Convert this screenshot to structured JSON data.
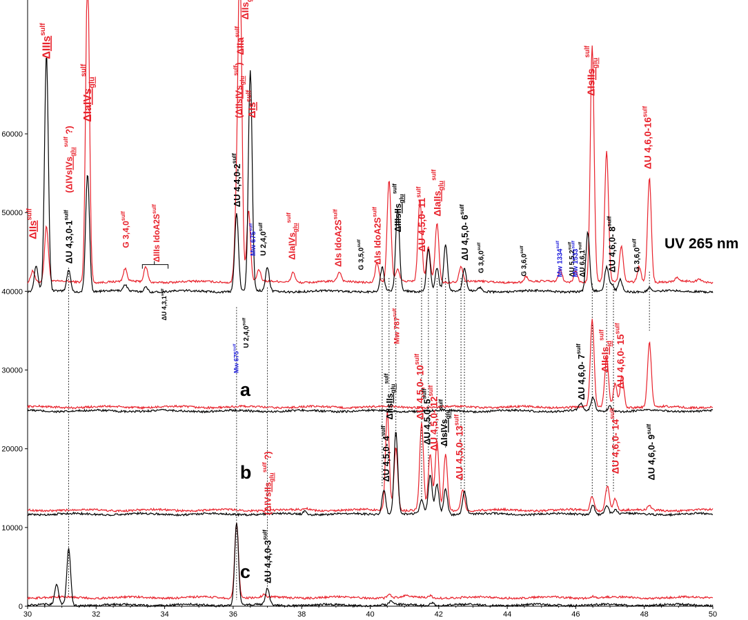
{
  "chart_data": {
    "type": "line",
    "title": "",
    "xlabel": "",
    "ylabel": "",
    "xlim": [
      30,
      50
    ],
    "ylim": [
      0,
      77000
    ],
    "x_ticks": [
      "30",
      "32",
      "34",
      "36",
      "38",
      "40",
      "42",
      "44",
      "46",
      "48",
      "50"
    ],
    "y_ticks": [
      "0",
      "10000",
      "20000",
      "30000",
      "40000",
      "50000",
      "60000"
    ],
    "x_tick_values": [
      30,
      32,
      34,
      36,
      38,
      40,
      42,
      44,
      46,
      48,
      50
    ],
    "y_tick_values": [
      0,
      10000,
      20000,
      30000,
      40000,
      50000,
      60000
    ],
    "grid": false,
    "detector_label": "UV 265 nm",
    "trace_labels": [
      {
        "label": "a",
        "x": 36.2,
        "y": 26700
      },
      {
        "label": "b",
        "x": 36.2,
        "y": 16200
      },
      {
        "label": "c",
        "x": 36.2,
        "y": 3600
      }
    ],
    "colors": {
      "red": "#e8202a",
      "black": "#000000",
      "blue": "#1a1adc"
    },
    "series": [
      {
        "color": "red",
        "baseline": 41200,
        "peaks": [
          [
            30.15,
            1500
          ],
          [
            30.55,
            7000
          ],
          [
            31.75,
            40000
          ],
          [
            32.85,
            1600
          ],
          [
            33.45,
            1900
          ],
          [
            36.1,
            9000
          ],
          [
            36.2,
            40000
          ],
          [
            36.45,
            9000
          ],
          [
            36.75,
            1500
          ],
          [
            37.75,
            1300
          ],
          [
            39.1,
            1200
          ],
          [
            40.2,
            2500
          ],
          [
            40.55,
            13000
          ],
          [
            40.8,
            1500
          ],
          [
            41.45,
            10500
          ],
          [
            41.7,
            4500
          ],
          [
            41.95,
            7500
          ],
          [
            42.65,
            2000
          ],
          [
            44.55,
            700
          ],
          [
            45.55,
            1500
          ],
          [
            46.0,
            1500
          ],
          [
            46.48,
            30000
          ],
          [
            46.9,
            16500
          ],
          [
            47.33,
            4500
          ],
          [
            47.85,
            2000
          ],
          [
            48.15,
            13300
          ],
          [
            48.95,
            500
          ],
          [
            49.6,
            400
          ]
        ]
      },
      {
        "color": "black",
        "baseline": 40000,
        "peaks": [
          [
            30.25,
            3300
          ],
          [
            30.55,
            30000
          ],
          [
            31.2,
            2800
          ],
          [
            31.75,
            15000
          ],
          [
            32.85,
            800
          ],
          [
            33.45,
            600
          ],
          [
            36.1,
            10000
          ],
          [
            36.5,
            28000
          ],
          [
            37.0,
            3000
          ],
          [
            40.35,
            3000
          ],
          [
            40.8,
            10500
          ],
          [
            41.7,
            5500
          ],
          [
            41.95,
            3000
          ],
          [
            42.2,
            6000
          ],
          [
            42.75,
            2800
          ],
          [
            43.2,
            500
          ],
          [
            46.35,
            7500
          ],
          [
            46.9,
            3000
          ],
          [
            47.05,
            800
          ],
          [
            47.3,
            1500
          ],
          [
            48.15,
            500
          ]
        ]
      },
      {
        "color": "red",
        "baseline": 25300,
        "peaks": [
          [
            46.48,
            11000
          ],
          [
            46.9,
            6200
          ],
          [
            47.15,
            3000
          ],
          [
            47.35,
            4000
          ],
          [
            48.15,
            8200
          ]
        ]
      },
      {
        "color": "black",
        "baseline": 24800,
        "peaks": [
          [
            46.15,
            900
          ],
          [
            46.5,
            1700
          ],
          [
            47.0,
            700
          ]
        ]
      },
      {
        "color": "red",
        "baseline": 12200,
        "peaks": [
          [
            38.15,
            200
          ],
          [
            40.5,
            12500
          ],
          [
            40.75,
            8000
          ],
          [
            41.5,
            11000
          ],
          [
            41.75,
            7000
          ],
          [
            41.95,
            8500
          ],
          [
            42.2,
            7000
          ],
          [
            42.7,
            2700
          ],
          [
            46.48,
            1800
          ],
          [
            46.92,
            3200
          ],
          [
            47.15,
            1500
          ],
          [
            48.15,
            500
          ]
        ]
      },
      {
        "color": "black",
        "baseline": 11700,
        "peaks": [
          [
            38.1,
            400
          ],
          [
            40.4,
            3200
          ],
          [
            40.75,
            10500
          ],
          [
            41.5,
            1800
          ],
          [
            41.75,
            5000
          ],
          [
            41.95,
            3800
          ],
          [
            42.2,
            3200
          ],
          [
            42.75,
            3000
          ],
          [
            46.5,
            1200
          ],
          [
            46.9,
            1200
          ],
          [
            47.15,
            500
          ]
        ]
      },
      {
        "color": "red",
        "baseline": 1100,
        "peaks": [
          [
            36.1,
            9600
          ],
          [
            36.9,
            300
          ],
          [
            40.55,
            400
          ],
          [
            41.05,
            200
          ],
          [
            41.75,
            300
          ],
          [
            46.5,
            200
          ]
        ]
      },
      {
        "color": "black",
        "baseline": 150,
        "peaks": [
          [
            30.85,
            2600
          ],
          [
            31.2,
            7200
          ],
          [
            36.1,
            10500
          ],
          [
            37.0,
            2100
          ],
          [
            40.6,
            400
          ],
          [
            41.8,
            400
          ]
        ]
      }
    ],
    "dashed_lines": [
      [
        31.2,
        43000,
        1000
      ],
      [
        36.1,
        38000,
        800
      ],
      [
        37.0,
        40500,
        2400
      ],
      [
        40.35,
        41700,
        15200
      ],
      [
        40.55,
        41700,
        27000
      ],
      [
        40.75,
        41700,
        21500
      ],
      [
        41.5,
        41700,
        13500
      ],
      [
        41.7,
        41700,
        16500
      ],
      [
        41.95,
        41700,
        20800
      ],
      [
        42.2,
        41700,
        20000
      ],
      [
        42.65,
        41700,
        14900
      ],
      [
        42.75,
        41700,
        14900
      ],
      [
        46.48,
        41000,
        13700
      ],
      [
        46.9,
        41000,
        14600
      ],
      [
        47.1,
        41000,
        14600
      ],
      [
        48.15,
        42500,
        35000
      ]
    ],
    "annotations": [
      {
        "text": "ΔIIs",
        "sup": "sulf",
        "underline": "IIs",
        "x": 30.25,
        "y": 46600,
        "color": "red",
        "size": 15
      },
      {
        "text": "ΔIIIs",
        "sup": "sulf",
        "underline": "IIIs",
        "x": 30.65,
        "y": 69500,
        "color": "red",
        "size": 16
      },
      {
        "text": "ΔIaIVs",
        "sub": "glu",
        "sup": "sulf",
        "underline": "IVs",
        "x": 31.85,
        "y": 61500,
        "color": "red",
        "size": 16
      },
      {
        "text": "ΔU 4,3,0-1",
        "sup": "sulf",
        "x": 31.3,
        "y": 43500,
        "color": "black",
        "size": 13
      },
      {
        "text": "(ΔIVsIVs",
        "sub": "glu",
        "sup": "sulf",
        "tail": " ?)",
        "underline": "IVs",
        "x": 31.3,
        "y": 52500,
        "color": "red",
        "size": 13
      },
      {
        "text": "G 3,4,0",
        "sup": "sulf",
        "x": 32.95,
        "y": 45500,
        "color": "red",
        "size": 12
      },
      {
        "text": "ΔIIIs IdoA2S",
        "sup": "sulf",
        "x": 33.85,
        "y": 43700,
        "color": "red",
        "size": 12
      },
      {
        "text": "ΔU 4,3,1",
        "sup": "sulf",
        "x": 34.05,
        "y": 36300,
        "color": "black",
        "size": 9
      },
      {
        "text": "ΔU 4,4,0-2",
        "sup": "sulf",
        "x": 36.2,
        "y": 50700,
        "color": "black",
        "size": 13
      },
      {
        "text": "(ΔIIsIVs",
        "sub": "glu",
        "sup": "sulf",
        "tail": ")",
        "underline": "IVs",
        "x": 36.25,
        "y": 62000,
        "color": "red",
        "size": 13
      },
      {
        "text": "ΔIIa",
        "sup": "sulf",
        "x": 36.3,
        "y": 70000,
        "color": "red",
        "size": 14
      },
      {
        "text": "ΔIIs",
        "sub": "glu",
        "x": 36.45,
        "y": 74500,
        "color": "red",
        "size": 14
      },
      {
        "text": "ΔIs",
        "sup": "sulf",
        "underline": "Is",
        "x": 36.65,
        "y": 62000,
        "color": "red",
        "size": 15
      },
      {
        "text": "Mw 675",
        "sup": "sulf",
        "x": 36.65,
        "y": 44500,
        "color": "blue",
        "size": 10
      },
      {
        "text": "U 2,4,0",
        "sup": "sulf",
        "x": 36.95,
        "y": 44500,
        "color": "black",
        "size": 11
      },
      {
        "text": "U 2,4,0",
        "sup": "sulf",
        "x": 36.45,
        "y": 32800,
        "color": "black",
        "size": 10
      },
      {
        "text": "Mw 675",
        "sup": "sulf",
        "x": 36.15,
        "y": 29600,
        "color": "blue",
        "size": 9
      },
      {
        "text": "ΔIaIVs",
        "sub": "glu",
        "sup": "sulf",
        "underline": "IVs",
        "x": 37.8,
        "y": 44000,
        "color": "red",
        "size": 13
      },
      {
        "text": "ΔIs IdoA2S",
        "sup": "sulf",
        "x": 39.15,
        "y": 43100,
        "color": "red",
        "size": 13
      },
      {
        "text": "G 3,5,0",
        "sup": "sulf",
        "x": 39.8,
        "y": 42700,
        "color": "black",
        "size": 10
      },
      {
        "text": "ΔIs IdoA2S",
        "sup": "sulf",
        "x": 40.3,
        "y": 43400,
        "color": "red",
        "size": 13
      },
      {
        "text": "Mw 787",
        "sup": "sulf",
        "x": 40.85,
        "y": 33300,
        "color": "red",
        "size": 11
      },
      {
        "text": "ΔIIIsIIs",
        "sub": "glu",
        "sup": "sulf",
        "underline": "IIs",
        "x": 40.9,
        "y": 47500,
        "color": "black",
        "size": 13
      },
      {
        "text": "ΔU 4,5,0- 11",
        "sup": "sulf",
        "x": 41.6,
        "y": 45000,
        "color": "red",
        "size": 14
      },
      {
        "text": "ΔIaIIs",
        "sub": "glu",
        "sup": "sulf",
        "underline": "IIs",
        "x": 42.05,
        "y": 49500,
        "color": "red",
        "size": 14
      },
      {
        "text": "ΔU 4,5,0- 6",
        "sup": "sulf",
        "x": 42.85,
        "y": 43900,
        "color": "black",
        "size": 13
      },
      {
        "text": "G 3,6,0",
        "sup": "sulf",
        "x": 43.3,
        "y": 42300,
        "color": "black",
        "size": 10
      },
      {
        "text": "G 3,6,0",
        "sup": "sulf",
        "x": 44.55,
        "y": 41900,
        "color": "black",
        "size": 10
      },
      {
        "text": "Mw 1334",
        "sup": "sulf",
        "x": 45.6,
        "y": 41800,
        "color": "blue",
        "size": 10
      },
      {
        "text": "ΔU 5,5,2",
        "sup": "sulf",
        "x": 45.95,
        "y": 41800,
        "color": "black",
        "size": 10
      },
      {
        "text": "Mw 1533",
        "sup": "sulf",
        "x": 46.05,
        "y": 41800,
        "color": "blue",
        "size": 10
      },
      {
        "text": "ΔU 6,6,1",
        "sup": "sulf",
        "x": 46.25,
        "y": 41800,
        "color": "black",
        "size": 10
      },
      {
        "text": "ΔIsIIs",
        "sub": "glu",
        "sup": "sulf",
        "underline": "IIs",
        "x": 46.55,
        "y": 64800,
        "color": "red",
        "size": 15
      },
      {
        "text": "ΔU 4,6,0- 8",
        "sup": "sulf",
        "x": 47.15,
        "y": 42400,
        "color": "black",
        "size": 13
      },
      {
        "text": "G 3,6,0",
        "sup": "sulf",
        "x": 47.85,
        "y": 42400,
        "color": "black",
        "size": 11
      },
      {
        "text": "ΔU 4,6,0-16",
        "sup": "sulf",
        "x": 48.2,
        "y": 55500,
        "color": "red",
        "size": 14
      },
      {
        "text": "ΔU 4,6,0- 7",
        "sup": "sulf",
        "x": 46.25,
        "y": 26200,
        "color": "black",
        "size": 13
      },
      {
        "text": "ΔIIsIs",
        "sub": "id",
        "sup": "sulf",
        "underline": "Is",
        "x": 46.95,
        "y": 29700,
        "color": "red",
        "size": 14
      },
      {
        "text": "ΔU 4,6,0- 15",
        "sup": "sulf",
        "x": 47.4,
        "y": 27600,
        "color": "red",
        "size": 14
      },
      {
        "text": "ΔU 4,5,0- 4",
        "sup": "sulf",
        "x": 40.55,
        "y": 15800,
        "color": "black",
        "size": 13
      },
      {
        "text": "ΔIIsIIs",
        "sub": "glu",
        "sup": "sulf",
        "underline": "IIs",
        "x": 40.65,
        "y": 23700,
        "color": "black",
        "size": 13
      },
      {
        "text": "ΔU 4,5,0- 10",
        "sup": "sulf",
        "x": 41.55,
        "y": 23700,
        "color": "red",
        "size": 14
      },
      {
        "text": "ΔU 4,5,0- 5",
        "sup": "sulf",
        "x": 41.75,
        "y": 20500,
        "color": "black",
        "size": 13
      },
      {
        "text": "ΔU 4,5,0- 12",
        "sup": "sulf",
        "x": 41.95,
        "y": 19700,
        "color": "red",
        "size": 14
      },
      {
        "text": "ΔIsIVs",
        "sub": "glu",
        "sup": "sulf",
        "underline": "IVs",
        "x": 42.25,
        "y": 20300,
        "color": "black",
        "size": 13
      },
      {
        "text": "ΔU 4,5,0- 13",
        "sup": "sulf",
        "x": 42.7,
        "y": 16000,
        "color": "red",
        "size": 14
      },
      {
        "text": "ΔU 4,6,0- 14",
        "sup": "sulf",
        "x": 47.25,
        "y": 16800,
        "color": "red",
        "size": 14
      },
      {
        "text": "ΔU 4,6,0- 9",
        "sup": "sulf",
        "x": 48.3,
        "y": 16000,
        "color": "black",
        "size": 13
      },
      {
        "text": "ΔU 4,4,0-3",
        "sup": "sulf",
        "x": 37.1,
        "y": 2900,
        "color": "black",
        "size": 13
      },
      {
        "text": "(ΔIVsIIs",
        "sub": "glu",
        "sup": "sulf",
        "tail": " ?)",
        "underline": "IIs",
        "x": 37.1,
        "y": 11600,
        "color": "red",
        "size": 13
      }
    ],
    "bracket": {
      "x1": 33.35,
      "x2": 34.1,
      "y": 43400,
      "mid": 33.7
    }
  }
}
